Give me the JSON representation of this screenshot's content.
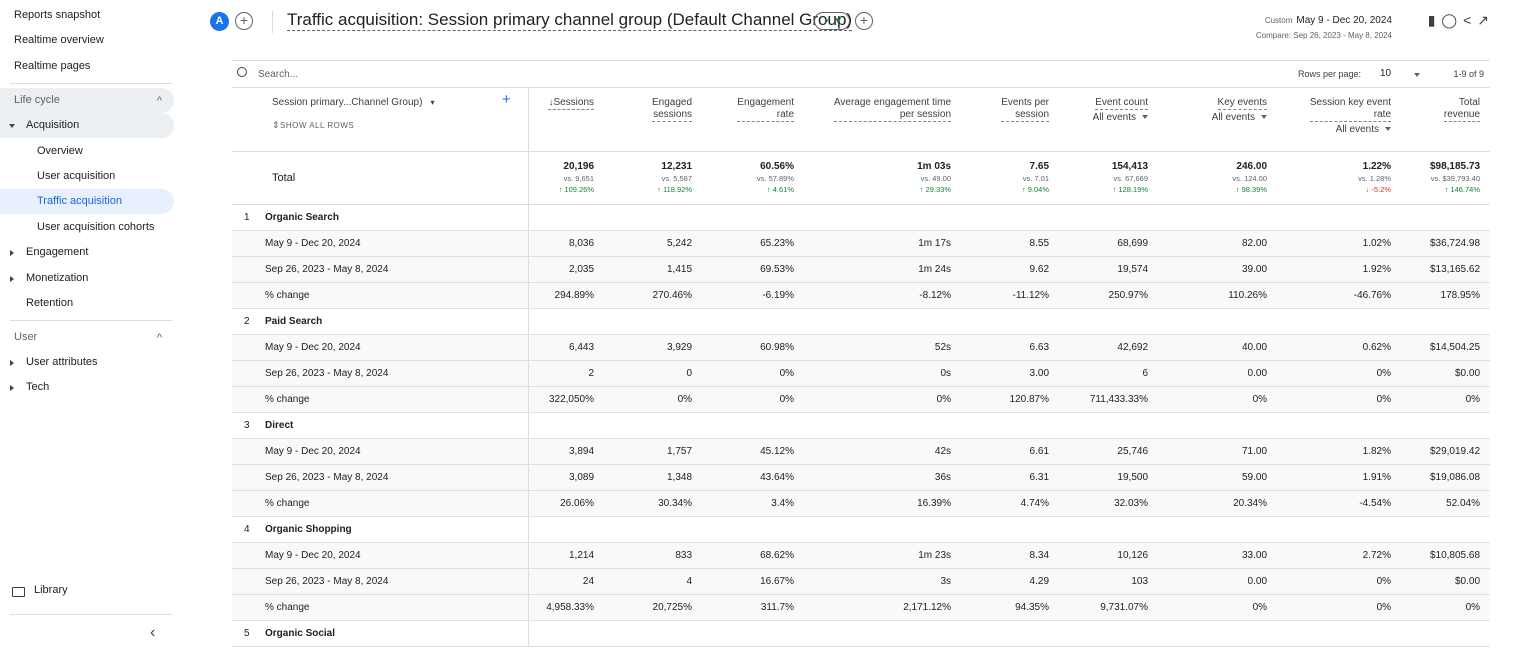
{
  "sidebar": {
    "top": [
      "Reports snapshot",
      "Realtime overview",
      "Realtime pages"
    ],
    "sections": [
      {
        "title": "Life cycle",
        "items": [
          {
            "label": "Acquisition",
            "children": [
              "Overview",
              "User acquisition",
              "Traffic acquisition",
              "User acquisition cohorts"
            ]
          },
          {
            "label": "Engagement"
          },
          {
            "label": "Monetization"
          },
          {
            "label": "Retention"
          }
        ]
      },
      {
        "title": "User",
        "items": [
          {
            "label": "User attributes"
          },
          {
            "label": "Tech"
          }
        ]
      }
    ],
    "library": "Library"
  },
  "header": {
    "avatar": "A",
    "title": "Traffic acquisition: Session primary channel group (Default Channel Group)",
    "date_mode": "Custom",
    "date_range": "May 9 - Dec 20, 2024",
    "compare": "Compare: Sep 26, 2023 - May 8, 2024"
  },
  "toolbar": {
    "search": "Search...",
    "rows_per_page_label": "Rows per page:",
    "rows_per_page": "10",
    "range": "1-9 of 9"
  },
  "table": {
    "dimension": "Session primary...Channel Group)",
    "show_all": "SHOW ALL ROWS",
    "columns": [
      {
        "lines": [
          "Sessions"
        ]
      },
      {
        "lines": [
          "Engaged",
          "sessions"
        ]
      },
      {
        "lines": [
          "Engagement",
          "rate"
        ]
      },
      {
        "lines": [
          "Average engagement time",
          "per session"
        ]
      },
      {
        "lines": [
          "Events per",
          "session"
        ]
      },
      {
        "lines": [
          "Event count"
        ],
        "sub": "All events"
      },
      {
        "lines": [
          "Key events"
        ],
        "sub": "All events"
      },
      {
        "lines": [
          "Session key event",
          "rate"
        ],
        "sub": "All events"
      },
      {
        "lines": [
          "Total",
          "revenue"
        ]
      }
    ],
    "total": {
      "label": "Total",
      "values": [
        "20,196",
        "12,231",
        "60.56%",
        "1m 03s",
        "7.65",
        "154,413",
        "246.00",
        "1.22%",
        "$98,185.73"
      ],
      "compare": [
        "vs. 9,651",
        "vs. 5,587",
        "vs. 57.89%",
        "vs. 49.00",
        "vs. 7.01",
        "vs. 67,669",
        "vs. 124.00",
        "vs. 1.28%",
        "vs. $39,793.40"
      ],
      "change": [
        "↑ 109.26%",
        "↑ 118.92%",
        "↑ 4.61%",
        "↑ 29.33%",
        "↑ 9.04%",
        "↑ 128.19%",
        "↑ 98.39%",
        "↓ -5.2%",
        "↑ 146.74%"
      ]
    },
    "groups": [
      {
        "number": "1",
        "name": "Organic Search",
        "rows": [
          {
            "label": "May 9 - Dec 20, 2024",
            "values": [
              "8,036",
              "5,242",
              "65.23%",
              "1m 17s",
              "8.55",
              "68,699",
              "82.00",
              "1.02%",
              "$36,724.98"
            ]
          },
          {
            "label": "Sep 26, 2023 - May 8, 2024",
            "values": [
              "2,035",
              "1,415",
              "69.53%",
              "1m 24s",
              "9.62",
              "19,574",
              "39.00",
              "1.92%",
              "$13,165.62"
            ]
          },
          {
            "label": "% change",
            "values": [
              "294.89%",
              "270.46%",
              "-6.19%",
              "-8.12%",
              "-11.12%",
              "250.97%",
              "110.26%",
              "-46.76%",
              "178.95%"
            ]
          }
        ]
      },
      {
        "number": "2",
        "name": "Paid Search",
        "rows": [
          {
            "label": "May 9 - Dec 20, 2024",
            "values": [
              "6,443",
              "3,929",
              "60.98%",
              "52s",
              "6.63",
              "42,692",
              "40.00",
              "0.62%",
              "$14,504.25"
            ]
          },
          {
            "label": "Sep 26, 2023 - May 8, 2024",
            "values": [
              "2",
              "0",
              "0%",
              "0s",
              "3.00",
              "6",
              "0.00",
              "0%",
              "$0.00"
            ]
          },
          {
            "label": "% change",
            "values": [
              "322,050%",
              "0%",
              "0%",
              "0%",
              "120.87%",
              "711,433.33%",
              "0%",
              "0%",
              "0%"
            ]
          }
        ]
      },
      {
        "number": "3",
        "name": "Direct",
        "rows": [
          {
            "label": "May 9 - Dec 20, 2024",
            "values": [
              "3,894",
              "1,757",
              "45.12%",
              "42s",
              "6.61",
              "25,746",
              "71.00",
              "1.82%",
              "$29,019.42"
            ]
          },
          {
            "label": "Sep 26, 2023 - May 8, 2024",
            "values": [
              "3,089",
              "1,348",
              "43.64%",
              "36s",
              "6.31",
              "19,500",
              "59.00",
              "1.91%",
              "$19,086.08"
            ]
          },
          {
            "label": "% change",
            "values": [
              "26.06%",
              "30.34%",
              "3.4%",
              "16.39%",
              "4.74%",
              "32.03%",
              "20.34%",
              "-4.54%",
              "52.04%"
            ]
          }
        ]
      },
      {
        "number": "4",
        "name": "Organic Shopping",
        "rows": [
          {
            "label": "May 9 - Dec 20, 2024",
            "values": [
              "1,214",
              "833",
              "68.62%",
              "1m 23s",
              "8.34",
              "10,126",
              "33.00",
              "2.72%",
              "$10,805.68"
            ]
          },
          {
            "label": "Sep 26, 2023 - May 8, 2024",
            "values": [
              "24",
              "4",
              "16.67%",
              "3s",
              "4.29",
              "103",
              "0.00",
              "0%",
              "$0.00"
            ]
          },
          {
            "label": "% change",
            "values": [
              "4,958.33%",
              "20,725%",
              "311.7%",
              "2,171.12%",
              "94.35%",
              "9,731.07%",
              "0%",
              "0%",
              "0%"
            ]
          }
        ]
      },
      {
        "number": "5",
        "name": "Organic Social",
        "rows": []
      }
    ]
  }
}
